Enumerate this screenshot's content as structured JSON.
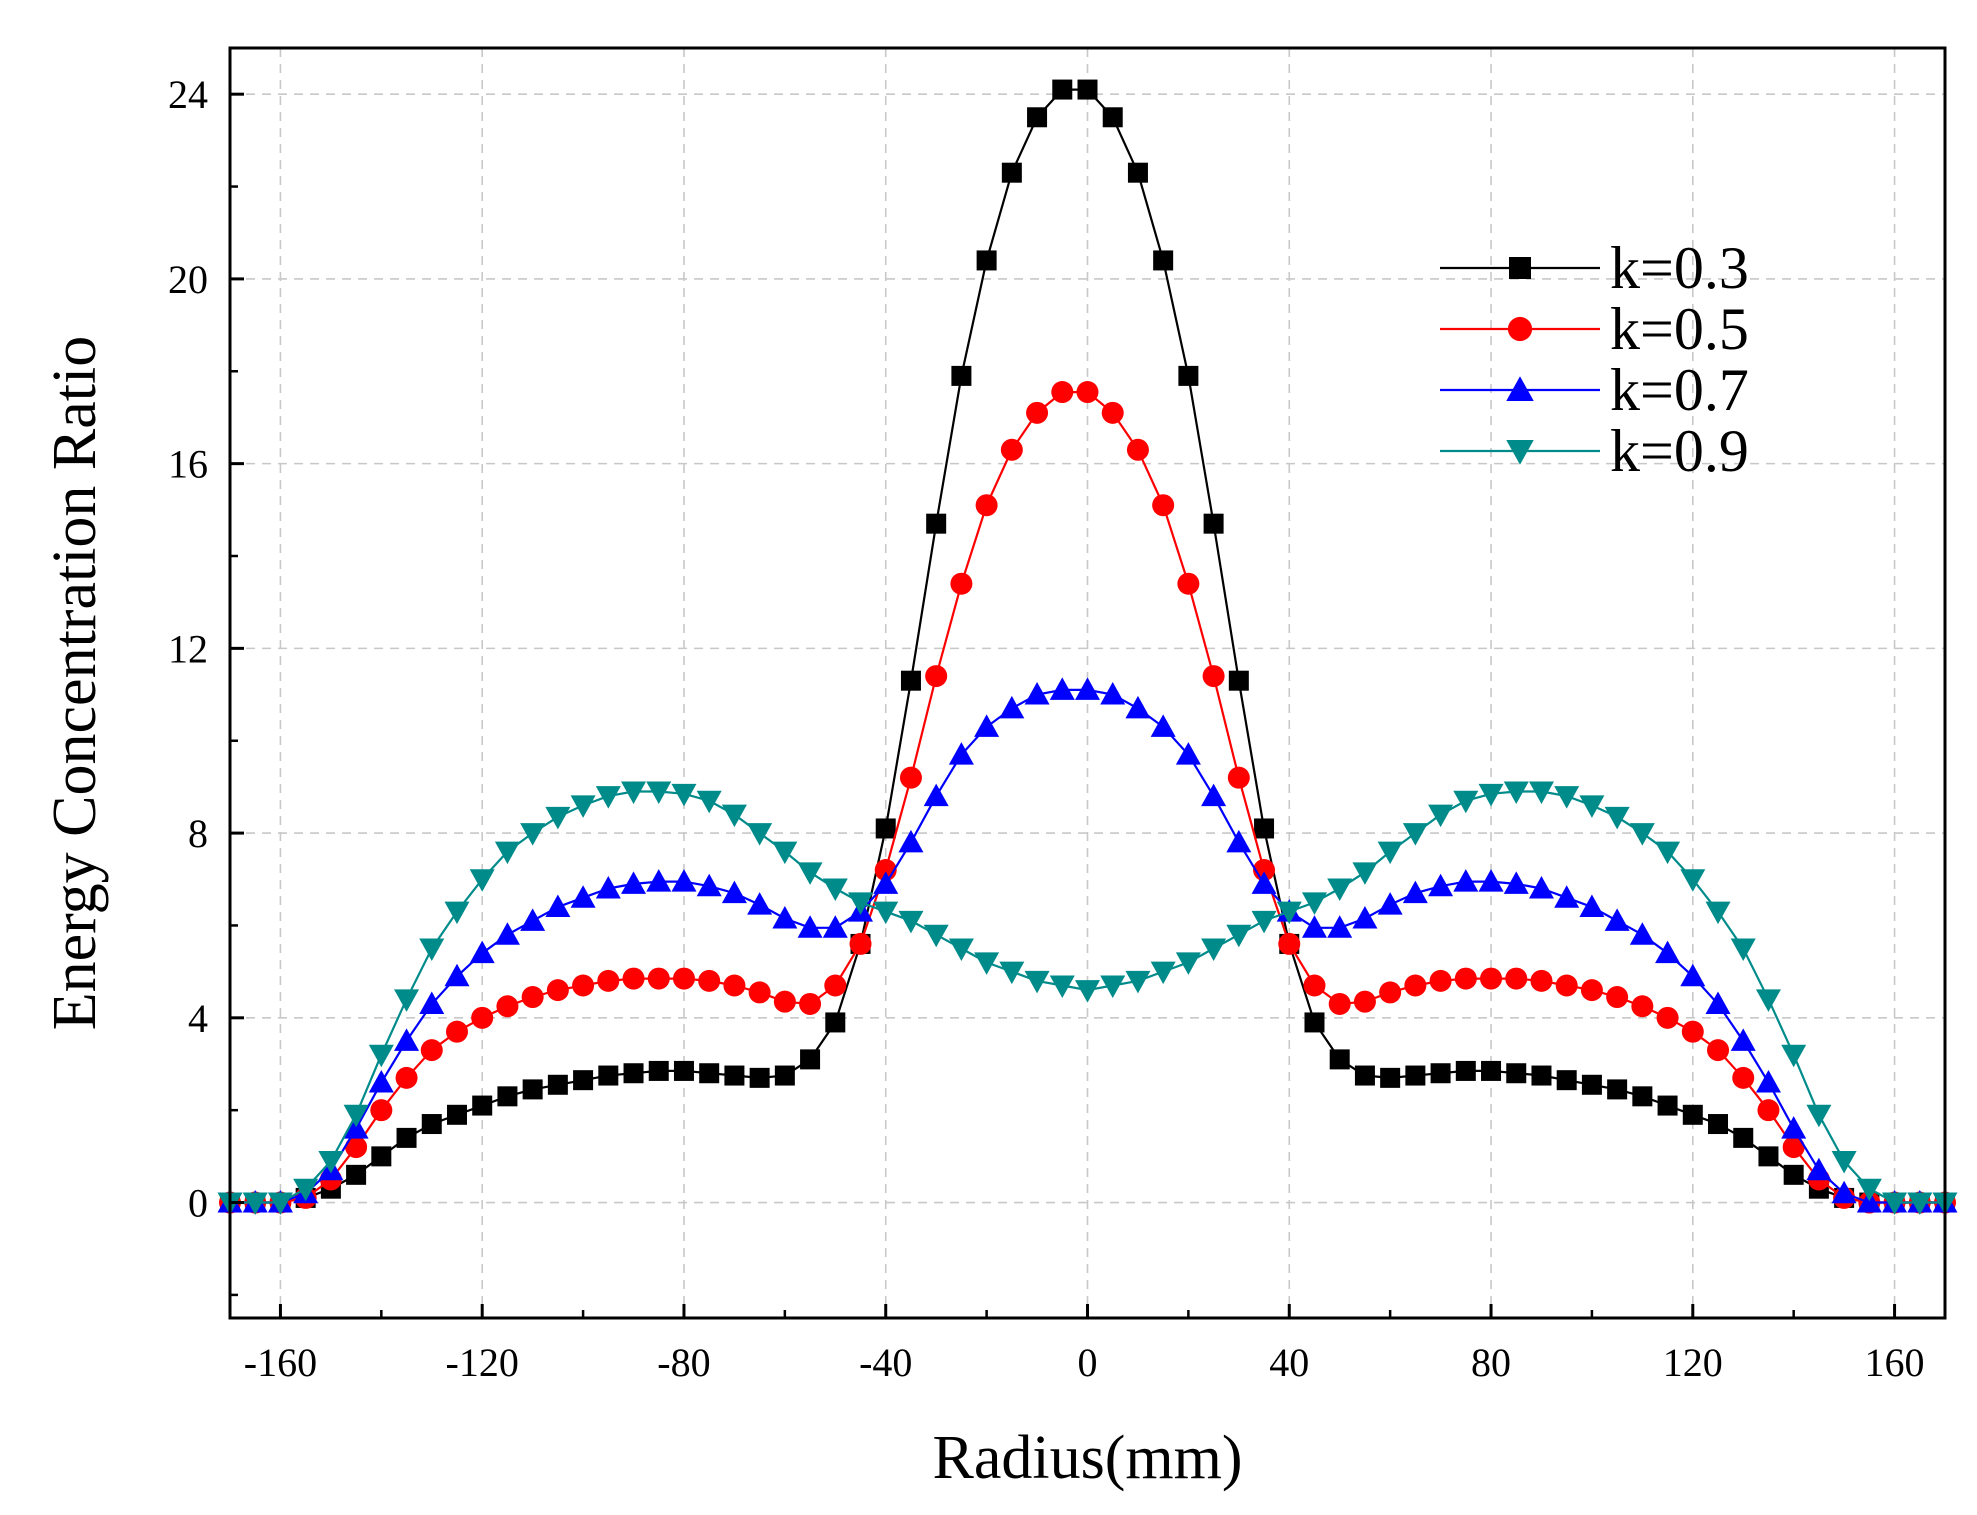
{
  "chart_data": {
    "type": "line",
    "title": "",
    "xlabel": "Radius(mm)",
    "ylabel": "Energy Concentration Ratio",
    "xlim": [
      -170,
      170
    ],
    "ylim": [
      -2.5,
      25
    ],
    "xticks": [
      -160,
      -120,
      -80,
      -40,
      0,
      40,
      80,
      120,
      160
    ],
    "yticks": [
      0,
      4,
      8,
      12,
      16,
      20,
      24
    ],
    "grid": true,
    "legend_position": "top-right",
    "x": [
      -170,
      -165,
      -160,
      -155,
      -150,
      -145,
      -140,
      -135,
      -130,
      -125,
      -120,
      -115,
      -110,
      -105,
      -100,
      -95,
      -90,
      -85,
      -80,
      -75,
      -70,
      -65,
      -60,
      -55,
      -50,
      -45,
      -40,
      -35,
      -30,
      -25,
      -20,
      -15,
      -10,
      -5,
      0,
      5,
      10,
      15,
      20,
      25,
      30,
      35,
      40,
      45,
      50,
      55,
      60,
      65,
      70,
      75,
      80,
      85,
      90,
      95,
      100,
      105,
      110,
      115,
      120,
      125,
      130,
      135,
      140,
      145,
      150,
      155,
      160,
      165,
      170
    ],
    "series": [
      {
        "name": "k=0.3",
        "color": "#000000",
        "marker": "square",
        "values": [
          0,
          0,
          0,
          0.1,
          0.3,
          0.6,
          1.0,
          1.4,
          1.7,
          1.9,
          2.1,
          2.3,
          2.45,
          2.55,
          2.65,
          2.75,
          2.8,
          2.85,
          2.85,
          2.8,
          2.75,
          2.7,
          2.75,
          3.1,
          3.9,
          5.6,
          8.1,
          11.3,
          14.7,
          17.9,
          20.4,
          22.3,
          23.5,
          24.1,
          24.1,
          23.5,
          22.3,
          20.4,
          17.9,
          14.7,
          11.3,
          8.1,
          5.6,
          3.9,
          3.1,
          2.75,
          2.7,
          2.75,
          2.8,
          2.85,
          2.85,
          2.8,
          2.75,
          2.65,
          2.55,
          2.45,
          2.3,
          2.1,
          1.9,
          1.7,
          1.4,
          1.0,
          0.6,
          0.3,
          0.1,
          0,
          0,
          0,
          0
        ]
      },
      {
        "name": "k=0.5",
        "color": "#ff0000",
        "marker": "circle",
        "values": [
          0,
          0,
          0,
          0.1,
          0.5,
          1.2,
          2.0,
          2.7,
          3.3,
          3.7,
          4.0,
          4.25,
          4.45,
          4.6,
          4.7,
          4.8,
          4.85,
          4.85,
          4.85,
          4.8,
          4.7,
          4.55,
          4.35,
          4.3,
          4.7,
          5.6,
          7.2,
          9.2,
          11.4,
          13.4,
          15.1,
          16.3,
          17.1,
          17.55,
          17.55,
          17.1,
          16.3,
          15.1,
          13.4,
          11.4,
          9.2,
          7.2,
          5.6,
          4.7,
          4.3,
          4.35,
          4.55,
          4.7,
          4.8,
          4.85,
          4.85,
          4.85,
          4.8,
          4.7,
          4.6,
          4.45,
          4.25,
          4.0,
          3.7,
          3.3,
          2.7,
          2.0,
          1.2,
          0.5,
          0.1,
          0,
          0,
          0,
          0
        ]
      },
      {
        "name": "k=0.7",
        "color": "#0000ff",
        "marker": "triangle-up",
        "values": [
          0,
          0,
          0,
          0.2,
          0.7,
          1.6,
          2.6,
          3.5,
          4.3,
          4.9,
          5.4,
          5.8,
          6.1,
          6.4,
          6.6,
          6.8,
          6.9,
          6.95,
          6.95,
          6.85,
          6.7,
          6.45,
          6.15,
          5.95,
          5.95,
          6.3,
          6.9,
          7.8,
          8.8,
          9.7,
          10.3,
          10.7,
          11.0,
          11.1,
          11.1,
          11.0,
          10.7,
          10.3,
          9.7,
          8.8,
          7.8,
          6.9,
          6.3,
          5.95,
          5.95,
          6.15,
          6.45,
          6.7,
          6.85,
          6.95,
          6.95,
          6.9,
          6.8,
          6.6,
          6.4,
          6.1,
          5.8,
          5.4,
          4.9,
          4.3,
          3.5,
          2.6,
          1.6,
          0.7,
          0.2,
          0,
          0,
          0,
          0
        ]
      },
      {
        "name": "k=0.9",
        "color": "#008b8b",
        "marker": "triangle-down",
        "values": [
          0,
          0,
          0,
          0.3,
          0.9,
          1.9,
          3.2,
          4.4,
          5.5,
          6.3,
          7.0,
          7.6,
          8.0,
          8.35,
          8.6,
          8.8,
          8.9,
          8.9,
          8.85,
          8.7,
          8.4,
          8.0,
          7.6,
          7.15,
          6.8,
          6.5,
          6.3,
          6.1,
          5.8,
          5.5,
          5.2,
          5.0,
          4.8,
          4.7,
          4.6,
          4.7,
          4.8,
          5.0,
          5.2,
          5.5,
          5.8,
          6.1,
          6.3,
          6.5,
          6.8,
          7.15,
          7.6,
          8.0,
          8.4,
          8.7,
          8.85,
          8.9,
          8.9,
          8.8,
          8.6,
          8.35,
          8.0,
          7.6,
          7.0,
          6.3,
          5.5,
          4.4,
          3.2,
          1.9,
          0.9,
          0.3,
          0,
          0,
          0
        ]
      }
    ]
  }
}
